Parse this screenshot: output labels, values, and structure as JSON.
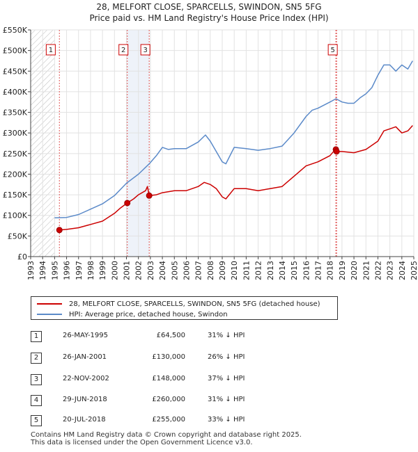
{
  "title": "28, MELFORT CLOSE, SPARCELLS, SWINDON, SN5 5FG",
  "subtitle": "Price paid vs. HM Land Registry's House Price Index (HPI)",
  "chart_data": {
    "type": "line",
    "title": "28, MELFORT CLOSE, SPARCELLS, SWINDON, SN5 5FG",
    "subtitle": "Price paid vs. HM Land Registry's House Price Index (HPI)",
    "xlabel": "",
    "ylabel": "",
    "xlim": [
      1993,
      2025
    ],
    "ylim": [
      0,
      550000
    ],
    "y_ticks": [
      0,
      50000,
      100000,
      150000,
      200000,
      250000,
      300000,
      350000,
      400000,
      450000,
      500000,
      550000
    ],
    "y_tick_labels": [
      "£0",
      "£50K",
      "£100K",
      "£150K",
      "£200K",
      "£250K",
      "£300K",
      "£350K",
      "£400K",
      "£450K",
      "£500K",
      "£550K"
    ],
    "x_ticks": [
      1993,
      1994,
      1995,
      1996,
      1997,
      1998,
      1999,
      2000,
      2001,
      2002,
      2003,
      2004,
      2005,
      2006,
      2007,
      2008,
      2009,
      2010,
      2011,
      2012,
      2013,
      2014,
      2015,
      2016,
      2017,
      2018,
      2019,
      2020,
      2021,
      2022,
      2023,
      2024,
      2025
    ],
    "x_tick_labels": [
      "1993",
      "1994",
      "1995",
      "1996",
      "1997",
      "1998",
      "1999",
      "2000",
      "2001",
      "2002",
      "2003",
      "2004",
      "2005",
      "2006",
      "2007",
      "2008",
      "2009",
      "2010",
      "2011",
      "2012",
      "2013",
      "2014",
      "2015",
      "2016",
      "2017",
      "2018",
      "2019",
      "2020",
      "2021",
      "2022",
      "2023",
      "2024",
      "2025"
    ],
    "grid": true,
    "hatched_region": [
      1993,
      1995.0
    ],
    "shaded_region": [
      2001.07,
      2002.9
    ],
    "series": [
      {
        "name": "28, MELFORT CLOSE, SPARCELLS, SWINDON, SN5 5FG (detached house)",
        "color": "#cc0000",
        "x": [
          1995.4,
          1996.0,
          1997.0,
          1998.0,
          1999.0,
          2000.0,
          2000.5,
          2001.07,
          2001.6,
          2002.0,
          2002.6,
          2002.75,
          2002.9,
          2003.5,
          2004.0,
          2005.0,
          2006.0,
          2007.0,
          2007.5,
          2008.0,
          2008.5,
          2009.0,
          2009.3,
          2010.0,
          2011.0,
          2012.0,
          2013.0,
          2014.0,
          2015.0,
          2016.0,
          2017.0,
          2018.0,
          2018.5,
          2018.55,
          2019.0,
          2020.0,
          2021.0,
          2022.0,
          2022.5,
          2023.0,
          2023.5,
          2024.0,
          2024.5,
          2024.9
        ],
        "values": [
          64500,
          66000,
          70000,
          78000,
          86000,
          105000,
          118000,
          130000,
          140000,
          150000,
          160000,
          170000,
          148000,
          150000,
          155000,
          160000,
          160000,
          170000,
          180000,
          175000,
          165000,
          145000,
          140000,
          165000,
          165000,
          160000,
          165000,
          170000,
          195000,
          220000,
          230000,
          245000,
          262000,
          255000,
          255000,
          252000,
          260000,
          280000,
          305000,
          310000,
          315000,
          300000,
          305000,
          318000
        ]
      },
      {
        "name": "HPI: Average price, detached house, Swindon",
        "color": "#5b8ac9",
        "x": [
          1995.0,
          1996.0,
          1997.0,
          1998.0,
          1999.0,
          2000.0,
          2001.0,
          2002.0,
          2002.9,
          2003.5,
          2004.0,
          2004.5,
          2005.0,
          2006.0,
          2007.0,
          2007.6,
          2008.0,
          2008.5,
          2009.0,
          2009.3,
          2010.0,
          2011.0,
          2012.0,
          2013.0,
          2014.0,
          2015.0,
          2016.0,
          2016.5,
          2017.0,
          2018.0,
          2018.5,
          2019.0,
          2019.5,
          2020.0,
          2020.5,
          2021.0,
          2021.5,
          2022.0,
          2022.5,
          2023.0,
          2023.5,
          2024.0,
          2024.5,
          2024.9
        ],
        "values": [
          94000,
          95000,
          102000,
          115000,
          128000,
          148000,
          178000,
          200000,
          225000,
          245000,
          265000,
          260000,
          262000,
          262000,
          278000,
          295000,
          280000,
          255000,
          230000,
          225000,
          265000,
          262000,
          258000,
          262000,
          268000,
          300000,
          340000,
          355000,
          360000,
          375000,
          383000,
          375000,
          372000,
          372000,
          385000,
          395000,
          410000,
          440000,
          465000,
          465000,
          450000,
          465000,
          455000,
          475000
        ]
      }
    ],
    "markers": [
      {
        "label": "1",
        "x": 1995.4,
        "value": 64500
      },
      {
        "label": "2",
        "x": 2001.07,
        "value": 130000
      },
      {
        "label": "3",
        "x": 2002.9,
        "value": 148000
      },
      {
        "label": "4",
        "x": 2018.49,
        "value": 260000
      },
      {
        "label": "5",
        "x": 2018.55,
        "value": 255000
      }
    ],
    "marker_boxes": [
      {
        "label": "1",
        "x": 1995.0
      },
      {
        "label": "2",
        "x": 2001.07
      },
      {
        "label": "3",
        "x": 2002.9
      },
      {
        "label": "5",
        "x": 2018.55
      }
    ]
  },
  "legend": {
    "property_label": "28, MELFORT CLOSE, SPARCELLS, SWINDON, SN5 5FG (detached house)",
    "hpi_label": "HPI: Average price, detached house, Swindon",
    "property_color": "#cc0000",
    "hpi_color": "#5b8ac9"
  },
  "transactions": [
    {
      "num": "1",
      "date": "26-MAY-1995",
      "price": "£64,500",
      "hpi": "31% ↓ HPI"
    },
    {
      "num": "2",
      "date": "26-JAN-2001",
      "price": "£130,000",
      "hpi": "26% ↓ HPI"
    },
    {
      "num": "3",
      "date": "22-NOV-2002",
      "price": "£148,000",
      "hpi": "37% ↓ HPI"
    },
    {
      "num": "4",
      "date": "29-JUN-2018",
      "price": "£260,000",
      "hpi": "31% ↓ HPI"
    },
    {
      "num": "5",
      "date": "20-JUL-2018",
      "price": "£255,000",
      "hpi": "33% ↓ HPI"
    }
  ],
  "footer": {
    "line1": "Contains HM Land Registry data © Crown copyright and database right 2025.",
    "line2": "This data is licensed under the Open Government Licence v3.0."
  }
}
